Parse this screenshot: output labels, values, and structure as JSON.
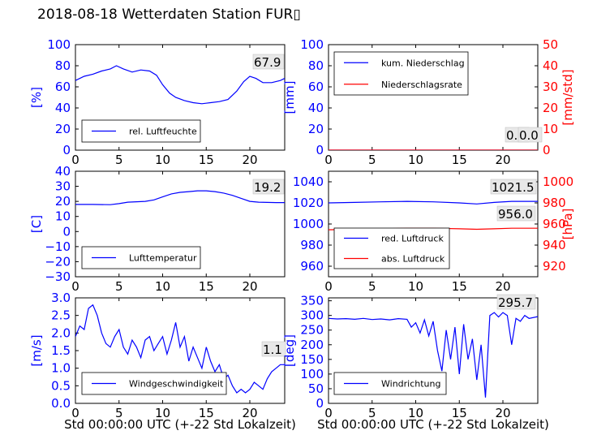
{
  "title": "2018-08-18 Wetterdaten Station FUR▯",
  "colors": {
    "primary": "#0000ff",
    "secondary": "#ff0000",
    "text": "#000000"
  },
  "chart_data": [
    {
      "id": "humidity",
      "type": "line",
      "ylabel": "[%]",
      "ylim": [
        0,
        100
      ],
      "yticks": [
        "0",
        "20",
        "40",
        "60",
        "80",
        "100"
      ],
      "xlim": [
        0,
        24
      ],
      "xticks": [
        "0",
        "5",
        "10",
        "15",
        "20"
      ],
      "legend": [
        "rel. Luftfeuchte"
      ],
      "legend_position": "lower-left",
      "last_value_label": "67.9",
      "series": [
        {
          "name": "rel. Luftfeuchte",
          "color": "#0000ff",
          "x": [
            0,
            1,
            2,
            3,
            4,
            4.7,
            5.5,
            6.5,
            7.5,
            8.5,
            9.3,
            10,
            10.8,
            11.5,
            12.5,
            13.5,
            14.5,
            15.5,
            16.5,
            17.5,
            18.5,
            19.3,
            20,
            20.7,
            21.5,
            22.5,
            23.5,
            24
          ],
          "y": [
            66,
            70,
            72,
            75,
            77,
            80,
            77,
            74,
            76,
            75,
            71,
            62,
            54,
            50,
            47,
            45,
            44,
            45,
            46,
            48,
            56,
            65,
            70,
            68,
            64,
            64,
            66,
            68
          ]
        }
      ]
    },
    {
      "id": "precipitation",
      "type": "line",
      "ylabel": "[mm]",
      "ylabel2": "[mm/std]",
      "ylim": [
        0,
        100
      ],
      "yticks": [
        "0",
        "20",
        "40",
        "60",
        "80",
        "100"
      ],
      "ylim2": [
        0,
        50
      ],
      "yticks2": [
        "0",
        "10",
        "20",
        "30",
        "40",
        "50"
      ],
      "xlim": [
        0,
        24
      ],
      "xticks": [
        "0",
        "5",
        "10",
        "15",
        "20"
      ],
      "legend": [
        "kum. Niederschlag",
        "Niederschlagsrate"
      ],
      "legend_position": "upper-left",
      "last_value_labels": [
        "0.0",
        "0.0"
      ],
      "series": [
        {
          "name": "kum. Niederschlag",
          "color": "#0000ff",
          "x": [
            0,
            24
          ],
          "y": [
            0,
            0
          ]
        },
        {
          "name": "Niederschlagsrate",
          "color": "#ff0000",
          "axis": "right",
          "x": [
            0,
            24
          ],
          "y": [
            0,
            0
          ]
        }
      ]
    },
    {
      "id": "temperature",
      "type": "line",
      "ylabel": "[C]",
      "ylim": [
        -30,
        40
      ],
      "yticks": [
        "−30",
        "−20",
        "−10",
        "0",
        "10",
        "20",
        "30",
        "40"
      ],
      "xlim": [
        0,
        24
      ],
      "xticks": [
        "0",
        "5",
        "10",
        "15",
        "20"
      ],
      "legend": [
        "Lufttemperatur"
      ],
      "legend_position": "lower-left",
      "last_value_label": "19.2",
      "series": [
        {
          "name": "Lufttemperatur",
          "color": "#0000ff",
          "x": [
            0,
            2,
            4,
            5,
            6,
            8,
            9,
            10,
            11,
            12,
            13,
            14,
            15,
            16,
            17,
            18,
            19,
            20,
            21,
            22,
            23,
            24
          ],
          "y": [
            18,
            18,
            17.8,
            18.5,
            19.5,
            20,
            21,
            23,
            25,
            26,
            26.5,
            27,
            27,
            26.5,
            25.5,
            24,
            22,
            20,
            19.5,
            19.3,
            19.2,
            19.2
          ]
        }
      ]
    },
    {
      "id": "pressure",
      "type": "line",
      "ylabel2": "[hPa]",
      "ylim": [
        950,
        1050
      ],
      "yticks": [
        "960",
        "980",
        "1000",
        "1020",
        "1040"
      ],
      "ylim2": [
        910,
        1010
      ],
      "yticks2": [
        "920",
        "940",
        "960",
        "980",
        "1000"
      ],
      "xlim": [
        0,
        24
      ],
      "xticks": [
        "0",
        "5",
        "10",
        "15",
        "20"
      ],
      "legend": [
        "red. Luftdruck",
        "abs. Luftdruck"
      ],
      "legend_position": "lower-left",
      "last_value_labels": [
        "1021.5",
        "956.0"
      ],
      "series": [
        {
          "name": "red. Luftdruck",
          "color": "#0000ff",
          "x": [
            0,
            3,
            6,
            9,
            12,
            15,
            17,
            19,
            21,
            24
          ],
          "y": [
            1020,
            1020.5,
            1021,
            1021.5,
            1021,
            1020,
            1019,
            1020.5,
            1021.5,
            1021.5
          ]
        },
        {
          "name": "abs. Luftdruck",
          "color": "#ff0000",
          "axis": "right",
          "x": [
            0,
            3,
            6,
            9,
            12,
            15,
            17,
            19,
            21,
            24
          ],
          "y": [
            954.5,
            955,
            955.5,
            956,
            956,
            955.5,
            955,
            955.5,
            956,
            956
          ]
        }
      ]
    },
    {
      "id": "wind-speed",
      "type": "line",
      "ylabel": "[m/s]",
      "ylim": [
        0,
        3
      ],
      "yticks": [
        "0.0",
        "0.5",
        "1.0",
        "1.5",
        "2.0",
        "2.5",
        "3.0"
      ],
      "xlim": [
        0,
        24
      ],
      "xlabel": "Std 00:00:00 UTC (+-22 Std Lokalzeit)",
      "xticks": [
        "0",
        "5",
        "10",
        "15",
        "20"
      ],
      "legend": [
        "Windgeschwindigkeit"
      ],
      "legend_position": "lower-left",
      "last_value_label": "1.1",
      "series": [
        {
          "name": "Windgeschwindigkeit",
          "color": "#0000ff",
          "x": [
            0,
            0.5,
            1,
            1.5,
            2,
            2.5,
            3,
            3.5,
            4,
            4.5,
            5,
            5.5,
            6,
            6.5,
            7,
            7.5,
            8,
            8.5,
            9,
            9.5,
            10,
            10.5,
            11,
            11.5,
            12,
            12.5,
            13,
            13.5,
            14,
            14.5,
            15,
            15.5,
            16,
            16.5,
            17,
            17.5,
            18,
            18.5,
            19,
            19.5,
            20,
            20.5,
            21,
            21.5,
            22,
            22.5,
            23,
            23.5,
            24
          ],
          "y": [
            1.9,
            2.2,
            2.1,
            2.7,
            2.8,
            2.5,
            2.0,
            1.7,
            1.6,
            1.9,
            2.1,
            1.6,
            1.4,
            1.8,
            1.6,
            1.3,
            1.8,
            1.9,
            1.5,
            1.7,
            1.9,
            1.4,
            1.8,
            2.3,
            1.6,
            1.9,
            1.2,
            1.6,
            1.3,
            1.0,
            1.6,
            1.2,
            0.9,
            1.1,
            0.7,
            0.8,
            0.5,
            0.3,
            0.4,
            0.3,
            0.4,
            0.6,
            0.5,
            0.4,
            0.7,
            0.9,
            1.0,
            1.1,
            1.1
          ]
        }
      ]
    },
    {
      "id": "wind-direction",
      "type": "line",
      "ylabel": "[deg]",
      "ylim": [
        0,
        360
      ],
      "yticks": [
        "0",
        "50",
        "100",
        "150",
        "200",
        "250",
        "300",
        "350"
      ],
      "xlim": [
        0,
        24
      ],
      "xlabel": "Std 00:00:00 UTC (+-22 Std Lokalzeit)",
      "xticks": [
        "0",
        "5",
        "10",
        "15",
        "20"
      ],
      "legend": [
        "Windrichtung"
      ],
      "legend_position": "lower-left",
      "last_value_label": "295.7",
      "series": [
        {
          "name": "Windrichtung",
          "color": "#0000ff",
          "x": [
            0,
            1,
            2,
            3,
            4,
            5,
            6,
            7,
            8,
            9,
            9.5,
            10,
            10.5,
            11,
            11.5,
            12,
            12.5,
            13,
            13.5,
            14,
            14.5,
            15,
            15.5,
            16,
            16.5,
            17,
            17.5,
            18,
            18.5,
            19,
            19.5,
            20,
            20.5,
            21,
            21.5,
            22,
            22.5,
            23,
            24
          ],
          "y": [
            290,
            288,
            289,
            287,
            290,
            286,
            288,
            285,
            289,
            287,
            260,
            275,
            240,
            285,
            230,
            280,
            180,
            110,
            250,
            150,
            260,
            100,
            270,
            150,
            220,
            80,
            200,
            20,
            300,
            310,
            295,
            310,
            300,
            200,
            290,
            280,
            300,
            290,
            296
          ]
        }
      ]
    }
  ]
}
